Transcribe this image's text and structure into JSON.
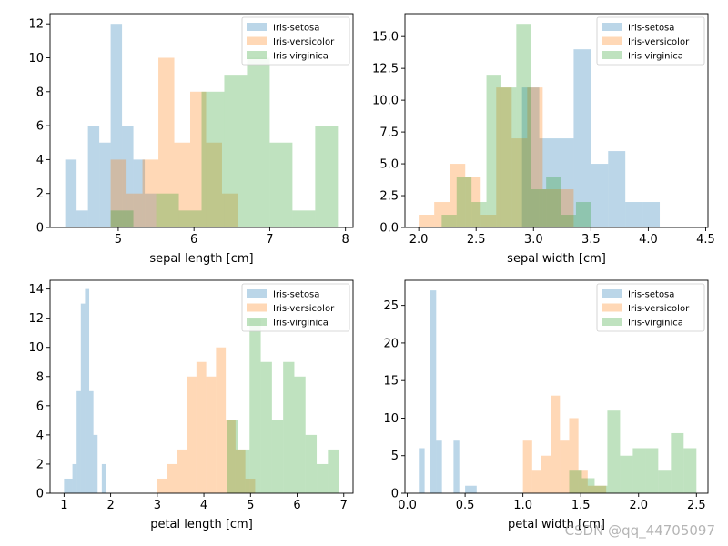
{
  "figure": {
    "watermark": "CSDN @qq_44705097"
  },
  "palette": {
    "Iris-setosa": "#1f77b4",
    "Iris-versicolor": "#ff7f0e",
    "Iris-virginica": "#2ca02c",
    "alpha": 0.3
  },
  "chart_data": [
    {
      "type": "histogram",
      "xlabel": "sepal length [cm]",
      "xlim": [
        4.1,
        8.1
      ],
      "ylim": [
        0,
        12.6
      ],
      "xticks": [
        5,
        6,
        7,
        8
      ],
      "yticks": [
        0,
        2,
        4,
        6,
        8,
        10,
        12
      ],
      "yticklabels": [
        "0",
        "2",
        "4",
        "6",
        "8",
        "10",
        "12"
      ],
      "legend": {
        "placement": "top-right",
        "entries": [
          "Iris-setosa",
          "Iris-versicolor",
          "Iris-virginica"
        ]
      },
      "series": [
        {
          "name": "Iris-setosa",
          "start": 4.3,
          "width": 0.15,
          "counts": [
            4,
            1,
            6,
            5,
            12,
            6,
            4,
            2
          ]
        },
        {
          "name": "Iris-versicolor",
          "start": 4.9,
          "width": 0.21,
          "counts": [
            4,
            2,
            4,
            10,
            5,
            8,
            5,
            2,
            0,
            0
          ]
        },
        {
          "name": "Iris-virginica",
          "start": 4.9,
          "width": 0.3,
          "counts": [
            1,
            0,
            2,
            1,
            8,
            9,
            10,
            5,
            1,
            6
          ]
        }
      ]
    },
    {
      "type": "histogram",
      "xlabel": "sepal width [cm]",
      "xlim": [
        1.88,
        4.52
      ],
      "ylim": [
        0,
        16.8
      ],
      "xticks": [
        2.0,
        2.5,
        3.0,
        3.5,
        4.0,
        4.5
      ],
      "xticklabels": [
        "2.0",
        "2.5",
        "3.0",
        "3.5",
        "4.0",
        "4.5"
      ],
      "yticks": [
        0,
        2.5,
        5,
        7.5,
        10,
        12.5,
        15
      ],
      "yticklabels": [
        "0.0",
        "2.5",
        "5.0",
        "7.5",
        "10.0",
        "12.5",
        "15.0"
      ],
      "legend": {
        "placement": "top-right",
        "entries": [
          "Iris-setosa",
          "Iris-versicolor",
          "Iris-virginica"
        ]
      },
      "series": [
        {
          "name": "Iris-setosa",
          "start": 2.9,
          "width": 0.15,
          "counts": [
            11,
            7,
            7,
            14,
            5,
            6,
            2,
            2
          ]
        },
        {
          "name": "Iris-versicolor",
          "start": 2.0,
          "width": 0.135,
          "counts": [
            1,
            2,
            5,
            4,
            1,
            11,
            7,
            11,
            3,
            3
          ]
        },
        {
          "name": "Iris-virginica",
          "start": 2.2,
          "width": 0.13,
          "counts": [
            1,
            4,
            2,
            12,
            11,
            16,
            3,
            4,
            1,
            2
          ]
        }
      ]
    },
    {
      "type": "histogram",
      "xlabel": "petal length [cm]",
      "xlim": [
        0.7,
        7.2
      ],
      "ylim": [
        0,
        14.6
      ],
      "xticks": [
        1,
        2,
        3,
        4,
        5,
        6,
        7
      ],
      "yticks": [
        0,
        2,
        4,
        6,
        8,
        10,
        12,
        14
      ],
      "yticklabels": [
        "0",
        "2",
        "4",
        "6",
        "8",
        "10",
        "12",
        "14"
      ],
      "legend": {
        "placement": "top-right",
        "entries": [
          "Iris-setosa",
          "Iris-versicolor",
          "Iris-virginica"
        ]
      },
      "series": [
        {
          "name": "Iris-setosa",
          "start": 1.0,
          "width": 0.09,
          "counts": [
            1,
            1,
            2,
            7,
            13,
            14,
            7,
            4,
            0,
            2
          ]
        },
        {
          "name": "Iris-versicolor",
          "start": 3.0,
          "width": 0.21,
          "counts": [
            1,
            2,
            3,
            8,
            9,
            8,
            10,
            5,
            3,
            1
          ]
        },
        {
          "name": "Iris-virginica",
          "start": 4.5,
          "width": 0.24,
          "counts": [
            5,
            3,
            12,
            9,
            5,
            9,
            8,
            4,
            2,
            3
          ]
        }
      ]
    },
    {
      "type": "histogram",
      "xlabel": "petal width [cm]",
      "xlim": [
        -0.02,
        2.6
      ],
      "ylim": [
        0,
        28.35
      ],
      "xticks": [
        0.0,
        0.5,
        1.0,
        1.5,
        2.0,
        2.5
      ],
      "xticklabels": [
        "0.0",
        "0.5",
        "1.0",
        "1.5",
        "2.0",
        "2.5"
      ],
      "yticks": [
        0,
        5,
        10,
        15,
        20,
        25
      ],
      "yticklabels": [
        "0",
        "5",
        "10",
        "15",
        "20",
        "25"
      ],
      "legend": {
        "placement": "top-right",
        "entries": [
          "Iris-setosa",
          "Iris-versicolor",
          "Iris-virginica"
        ]
      },
      "series": [
        {
          "name": "Iris-setosa",
          "start": 0.1,
          "width": 0.05,
          "counts": [
            6,
            0,
            27,
            7,
            0,
            0,
            7,
            0,
            1,
            1
          ]
        },
        {
          "name": "Iris-versicolor",
          "start": 1.0,
          "width": 0.08,
          "counts": [
            7,
            3,
            5,
            13,
            7,
            10,
            3,
            1,
            1
          ]
        },
        {
          "name": "Iris-virginica",
          "start": 1.4,
          "width": 0.11,
          "counts": [
            3,
            2,
            1,
            11,
            5,
            6,
            6,
            3,
            8,
            6
          ]
        }
      ]
    }
  ]
}
